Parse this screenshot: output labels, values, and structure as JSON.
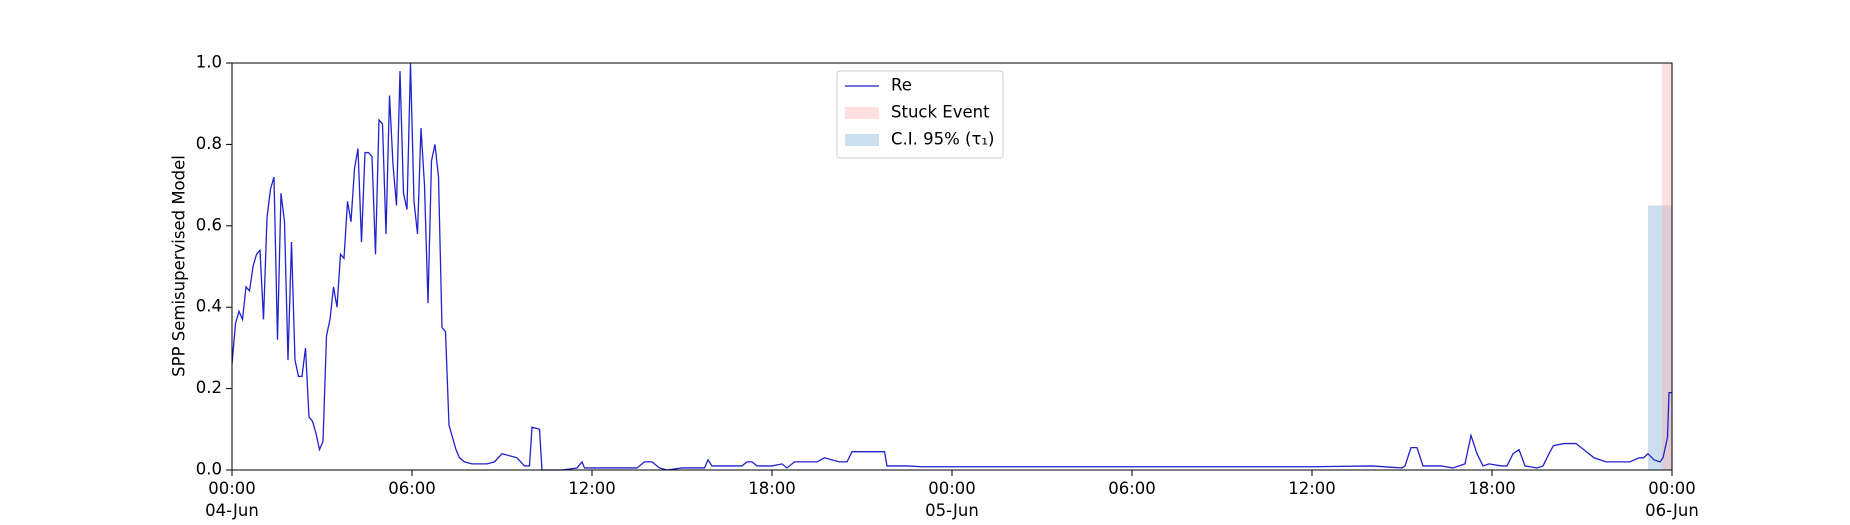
{
  "chart_data": {
    "type": "line",
    "ylabel": "SPP Semisupervised Model",
    "xlim": [
      "1900-06-04T00:00",
      "1900-06-06T00:00"
    ],
    "xticks": [
      {
        "value": "1900-06-04T00:00",
        "label": "00:00\n04-Jun\n1900"
      },
      {
        "value": "1900-06-04T06:00",
        "label": "06:00"
      },
      {
        "value": "1900-06-04T12:00",
        "label": "12:00"
      },
      {
        "value": "1900-06-04T18:00",
        "label": "18:00"
      },
      {
        "value": "1900-06-05T00:00",
        "label": "00:00\n05-Jun"
      },
      {
        "value": "1900-06-05T06:00",
        "label": "06:00"
      },
      {
        "value": "1900-06-05T12:00",
        "label": "12:00"
      },
      {
        "value": "1900-06-05T18:00",
        "label": "18:00"
      },
      {
        "value": "1900-06-06T00:00",
        "label": "00:00\n06-Jun"
      }
    ],
    "ylim": [
      0,
      1
    ],
    "yticks": [
      {
        "value": 0,
        "label": "0.0"
      },
      0.2,
      0.4,
      0.6,
      0.8,
      {
        "value": 1,
        "label": "1.0"
      }
    ],
    "legend": "upper center",
    "stuck_event": {
      "name": "Stuck Event",
      "color": "#ffb0b0",
      "start": "1900-06-05T23:40",
      "end": "1900-06-06T00:00"
    },
    "ci": {
      "name": "C.I. 95% (τ₁)",
      "color": "#7fb0d8",
      "start": "1900-06-05T23:12",
      "end": "1900-06-06T00:00",
      "upper": 0.65
    },
    "x": [
      "1900-06-04T00:00",
      "1900-06-04T00:07",
      "1900-06-04T00:14",
      "1900-06-04T00:21",
      "1900-06-04T00:28",
      "1900-06-04T00:35",
      "1900-06-04T00:42",
      "1900-06-04T00:49",
      "1900-06-04T00:56",
      "1900-06-04T01:03",
      "1900-06-04T01:10",
      "1900-06-04T01:17",
      "1900-06-04T01:24",
      "1900-06-04T01:31",
      "1900-06-04T01:38",
      "1900-06-04T01:45",
      "1900-06-04T01:52",
      "1900-06-04T01:59",
      "1900-06-04T02:06",
      "1900-06-04T02:13",
      "1900-06-04T02:20",
      "1900-06-04T02:27",
      "1900-06-04T02:34",
      "1900-06-04T02:41",
      "1900-06-04T02:48",
      "1900-06-04T02:55",
      "1900-06-04T03:02",
      "1900-06-04T03:09",
      "1900-06-04T03:16",
      "1900-06-04T03:23",
      "1900-06-04T03:30",
      "1900-06-04T03:37",
      "1900-06-04T03:44",
      "1900-06-04T03:51",
      "1900-06-04T03:58",
      "1900-06-04T04:05",
      "1900-06-04T04:12",
      "1900-06-04T04:19",
      "1900-06-04T04:26",
      "1900-06-04T04:33",
      "1900-06-04T04:40",
      "1900-06-04T04:47",
      "1900-06-04T04:54",
      "1900-06-04T05:01",
      "1900-06-04T05:08",
      "1900-06-04T05:15",
      "1900-06-04T05:22",
      "1900-06-04T05:29",
      "1900-06-04T05:36",
      "1900-06-04T05:43",
      "1900-06-04T05:50",
      "1900-06-04T05:57",
      "1900-06-04T06:04",
      "1900-06-04T06:11",
      "1900-06-04T06:18",
      "1900-06-04T06:25",
      "1900-06-04T06:32",
      "1900-06-04T06:39",
      "1900-06-04T06:46",
      "1900-06-04T06:53",
      "1900-06-04T07:00",
      "1900-06-04T07:07",
      "1900-06-04T07:14",
      "1900-06-04T07:21",
      "1900-06-04T07:28",
      "1900-06-04T07:35",
      "1900-06-04T07:45",
      "1900-06-04T08:00",
      "1900-06-04T08:30",
      "1900-06-04T08:45",
      "1900-06-04T09:00",
      "1900-06-04T09:30",
      "1900-06-04T09:45",
      "1900-06-04T09:55",
      "1900-06-04T10:00",
      "1900-06-04T10:15",
      "1900-06-04T10:20",
      "1900-06-04T11:00",
      "1900-06-04T11:30",
      "1900-06-04T11:40",
      "1900-06-04T11:45",
      "1900-06-04T13:30",
      "1900-06-04T13:45",
      "1900-06-04T14:00",
      "1900-06-04T14:15",
      "1900-06-04T14:30",
      "1900-06-04T15:00",
      "1900-06-04T15:45",
      "1900-06-04T15:52",
      "1900-06-04T16:00",
      "1900-06-04T17:00",
      "1900-06-04T17:10",
      "1900-06-04T17:20",
      "1900-06-04T17:30",
      "1900-06-04T18:00",
      "1900-06-04T18:20",
      "1900-06-04T18:30",
      "1900-06-04T18:45",
      "1900-06-04T19:30",
      "1900-06-04T19:45",
      "1900-06-04T20:00",
      "1900-06-04T20:15",
      "1900-06-04T20:30",
      "1900-06-04T20:40",
      "1900-06-04T21:45",
      "1900-06-04T21:50",
      "1900-06-04T22:30",
      "1900-06-04T23:00",
      "1900-06-05T12:00",
      "1900-06-05T14:00",
      "1900-06-05T15:00",
      "1900-06-05T15:06",
      "1900-06-05T15:18",
      "1900-06-05T15:30",
      "1900-06-05T15:42",
      "1900-06-05T16:18",
      "1900-06-05T16:42",
      "1900-06-05T17:06",
      "1900-06-05T17:18",
      "1900-06-05T17:30",
      "1900-06-05T17:42",
      "1900-06-05T17:54",
      "1900-06-05T18:18",
      "1900-06-05T18:30",
      "1900-06-05T18:42",
      "1900-06-05T18:54",
      "1900-06-05T19:06",
      "1900-06-05T19:30",
      "1900-06-05T19:42",
      "1900-06-05T19:54",
      "1900-06-05T20:03",
      "1900-06-05T20:24",
      "1900-06-05T20:48",
      "1900-06-05T21:24",
      "1900-06-05T21:48",
      "1900-06-05T22:36",
      "1900-06-05T22:54",
      "1900-06-05T23:03",
      "1900-06-05T23:12",
      "1900-06-05T23:24",
      "1900-06-05T23:36",
      "1900-06-05T23:42",
      "1900-06-05T23:51",
      "1900-06-05T23:54",
      "1900-06-06T00:00"
    ],
    "series": [
      {
        "name": "Re",
        "color": "#2222cc",
        "values": [
          0.26,
          0.36,
          0.39,
          0.37,
          0.45,
          0.44,
          0.5,
          0.53,
          0.54,
          0.37,
          0.62,
          0.69,
          0.72,
          0.32,
          0.68,
          0.61,
          0.27,
          0.56,
          0.27,
          0.23,
          0.23,
          0.3,
          0.13,
          0.12,
          0.09,
          0.05,
          0.07,
          0.33,
          0.37,
          0.45,
          0.4,
          0.53,
          0.52,
          0.66,
          0.61,
          0.74,
          0.79,
          0.56,
          0.78,
          0.78,
          0.77,
          0.53,
          0.86,
          0.85,
          0.58,
          0.92,
          0.75,
          0.65,
          0.98,
          0.68,
          0.64,
          1.0,
          0.66,
          0.58,
          0.84,
          0.7,
          0.41,
          0.76,
          0.8,
          0.72,
          0.35,
          0.34,
          0.11,
          0.08,
          0.05,
          0.03,
          0.02,
          0.015,
          0.015,
          0.02,
          0.04,
          0.03,
          0.01,
          0.01,
          0.105,
          0.1,
          0.0,
          0.0,
          0.005,
          0.02,
          0.005,
          0.005,
          0.02,
          0.02,
          0.005,
          0.0,
          0.005,
          0.005,
          0.025,
          0.01,
          0.01,
          0.02,
          0.02,
          0.01,
          0.01,
          0.015,
          0.005,
          0.02,
          0.02,
          0.03,
          0.025,
          0.02,
          0.02,
          0.045,
          0.045,
          0.01,
          0.01,
          0.008,
          0.008,
          0.01,
          0.005,
          0.01,
          0.055,
          0.055,
          0.01,
          0.01,
          0.005,
          0.015,
          0.085,
          0.04,
          0.01,
          0.015,
          0.01,
          0.01,
          0.04,
          0.05,
          0.01,
          0.005,
          0.01,
          0.04,
          0.06,
          0.065,
          0.065,
          0.03,
          0.02,
          0.02,
          0.03,
          0.03,
          0.04,
          0.025,
          0.02,
          0.03,
          0.08,
          0.19,
          0.19
        ]
      }
    ]
  }
}
